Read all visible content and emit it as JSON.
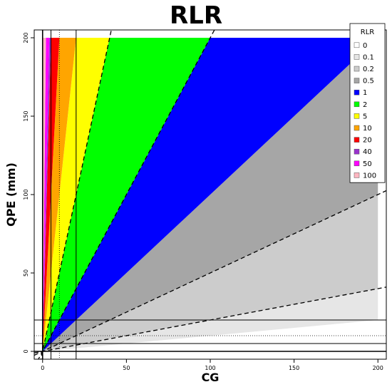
{
  "chart_data": {
    "type": "area",
    "title": "RLR",
    "xlabel": "CG",
    "ylabel": "QPE (mm)",
    "xlim": [
      -5,
      205
    ],
    "ylim": [
      -5,
      205
    ],
    "x_ticks": [
      0,
      50,
      100,
      150,
      200
    ],
    "y_ticks": [
      0,
      50,
      100,
      150,
      200
    ],
    "data_max": 200,
    "legend": {
      "title": "RLR",
      "position": "top-right",
      "entries": [
        {
          "label": "0",
          "color": "#ffffff"
        },
        {
          "label": "0.1",
          "color": "#e6e6e6"
        },
        {
          "label": "0.2",
          "color": "#cccccc"
        },
        {
          "label": "0.5",
          "color": "#a6a6a6"
        },
        {
          "label": "1",
          "color": "#0000ff"
        },
        {
          "label": "2",
          "color": "#00ff00"
        },
        {
          "label": "5",
          "color": "#ffff00"
        },
        {
          "label": "10",
          "color": "#ffa500"
        },
        {
          "label": "20",
          "color": "#ff0000"
        },
        {
          "label": "40",
          "color": "#9932cc"
        },
        {
          "label": "50",
          "color": "#ff00ff"
        },
        {
          "label": "100",
          "color": "#ffb6c1"
        }
      ]
    },
    "regions": [
      {
        "ratio_from": 0.1,
        "ratio_to": 0.2,
        "color": "#e6e6e6"
      },
      {
        "ratio_from": 0.2,
        "ratio_to": 0.5,
        "color": "#cccccc"
      },
      {
        "ratio_from": 0.5,
        "ratio_to": 1,
        "color": "#a6a6a6"
      },
      {
        "ratio_from": 1,
        "ratio_to": 2,
        "color": "#0000ff"
      },
      {
        "ratio_from": 2,
        "ratio_to": 5,
        "color": "#00ff00"
      },
      {
        "ratio_from": 5,
        "ratio_to": 10,
        "color": "#ffff00"
      },
      {
        "ratio_from": 10,
        "ratio_to": 20,
        "color": "#ffa500"
      },
      {
        "ratio_from": 20,
        "ratio_to": 40,
        "color": "#ff0000"
      },
      {
        "ratio_from": 40,
        "ratio_to": 50,
        "color": "#9932cc"
      },
      {
        "ratio_from": 50,
        "ratio_to": 100,
        "color": "#ff00ff"
      },
      {
        "ratio_from": 100,
        "ratio_to": 1000,
        "color": "#ffb6c1"
      }
    ],
    "dashed_ratio_lines": [
      0.2,
      0.5,
      2,
      5
    ],
    "reference_lines": {
      "vertical_solid": [
        0,
        5,
        20
      ],
      "vertical_dotted": [
        10
      ],
      "horizontal_solid": [
        0,
        5,
        20
      ],
      "horizontal_dotted": [
        10
      ]
    },
    "grid": false
  }
}
